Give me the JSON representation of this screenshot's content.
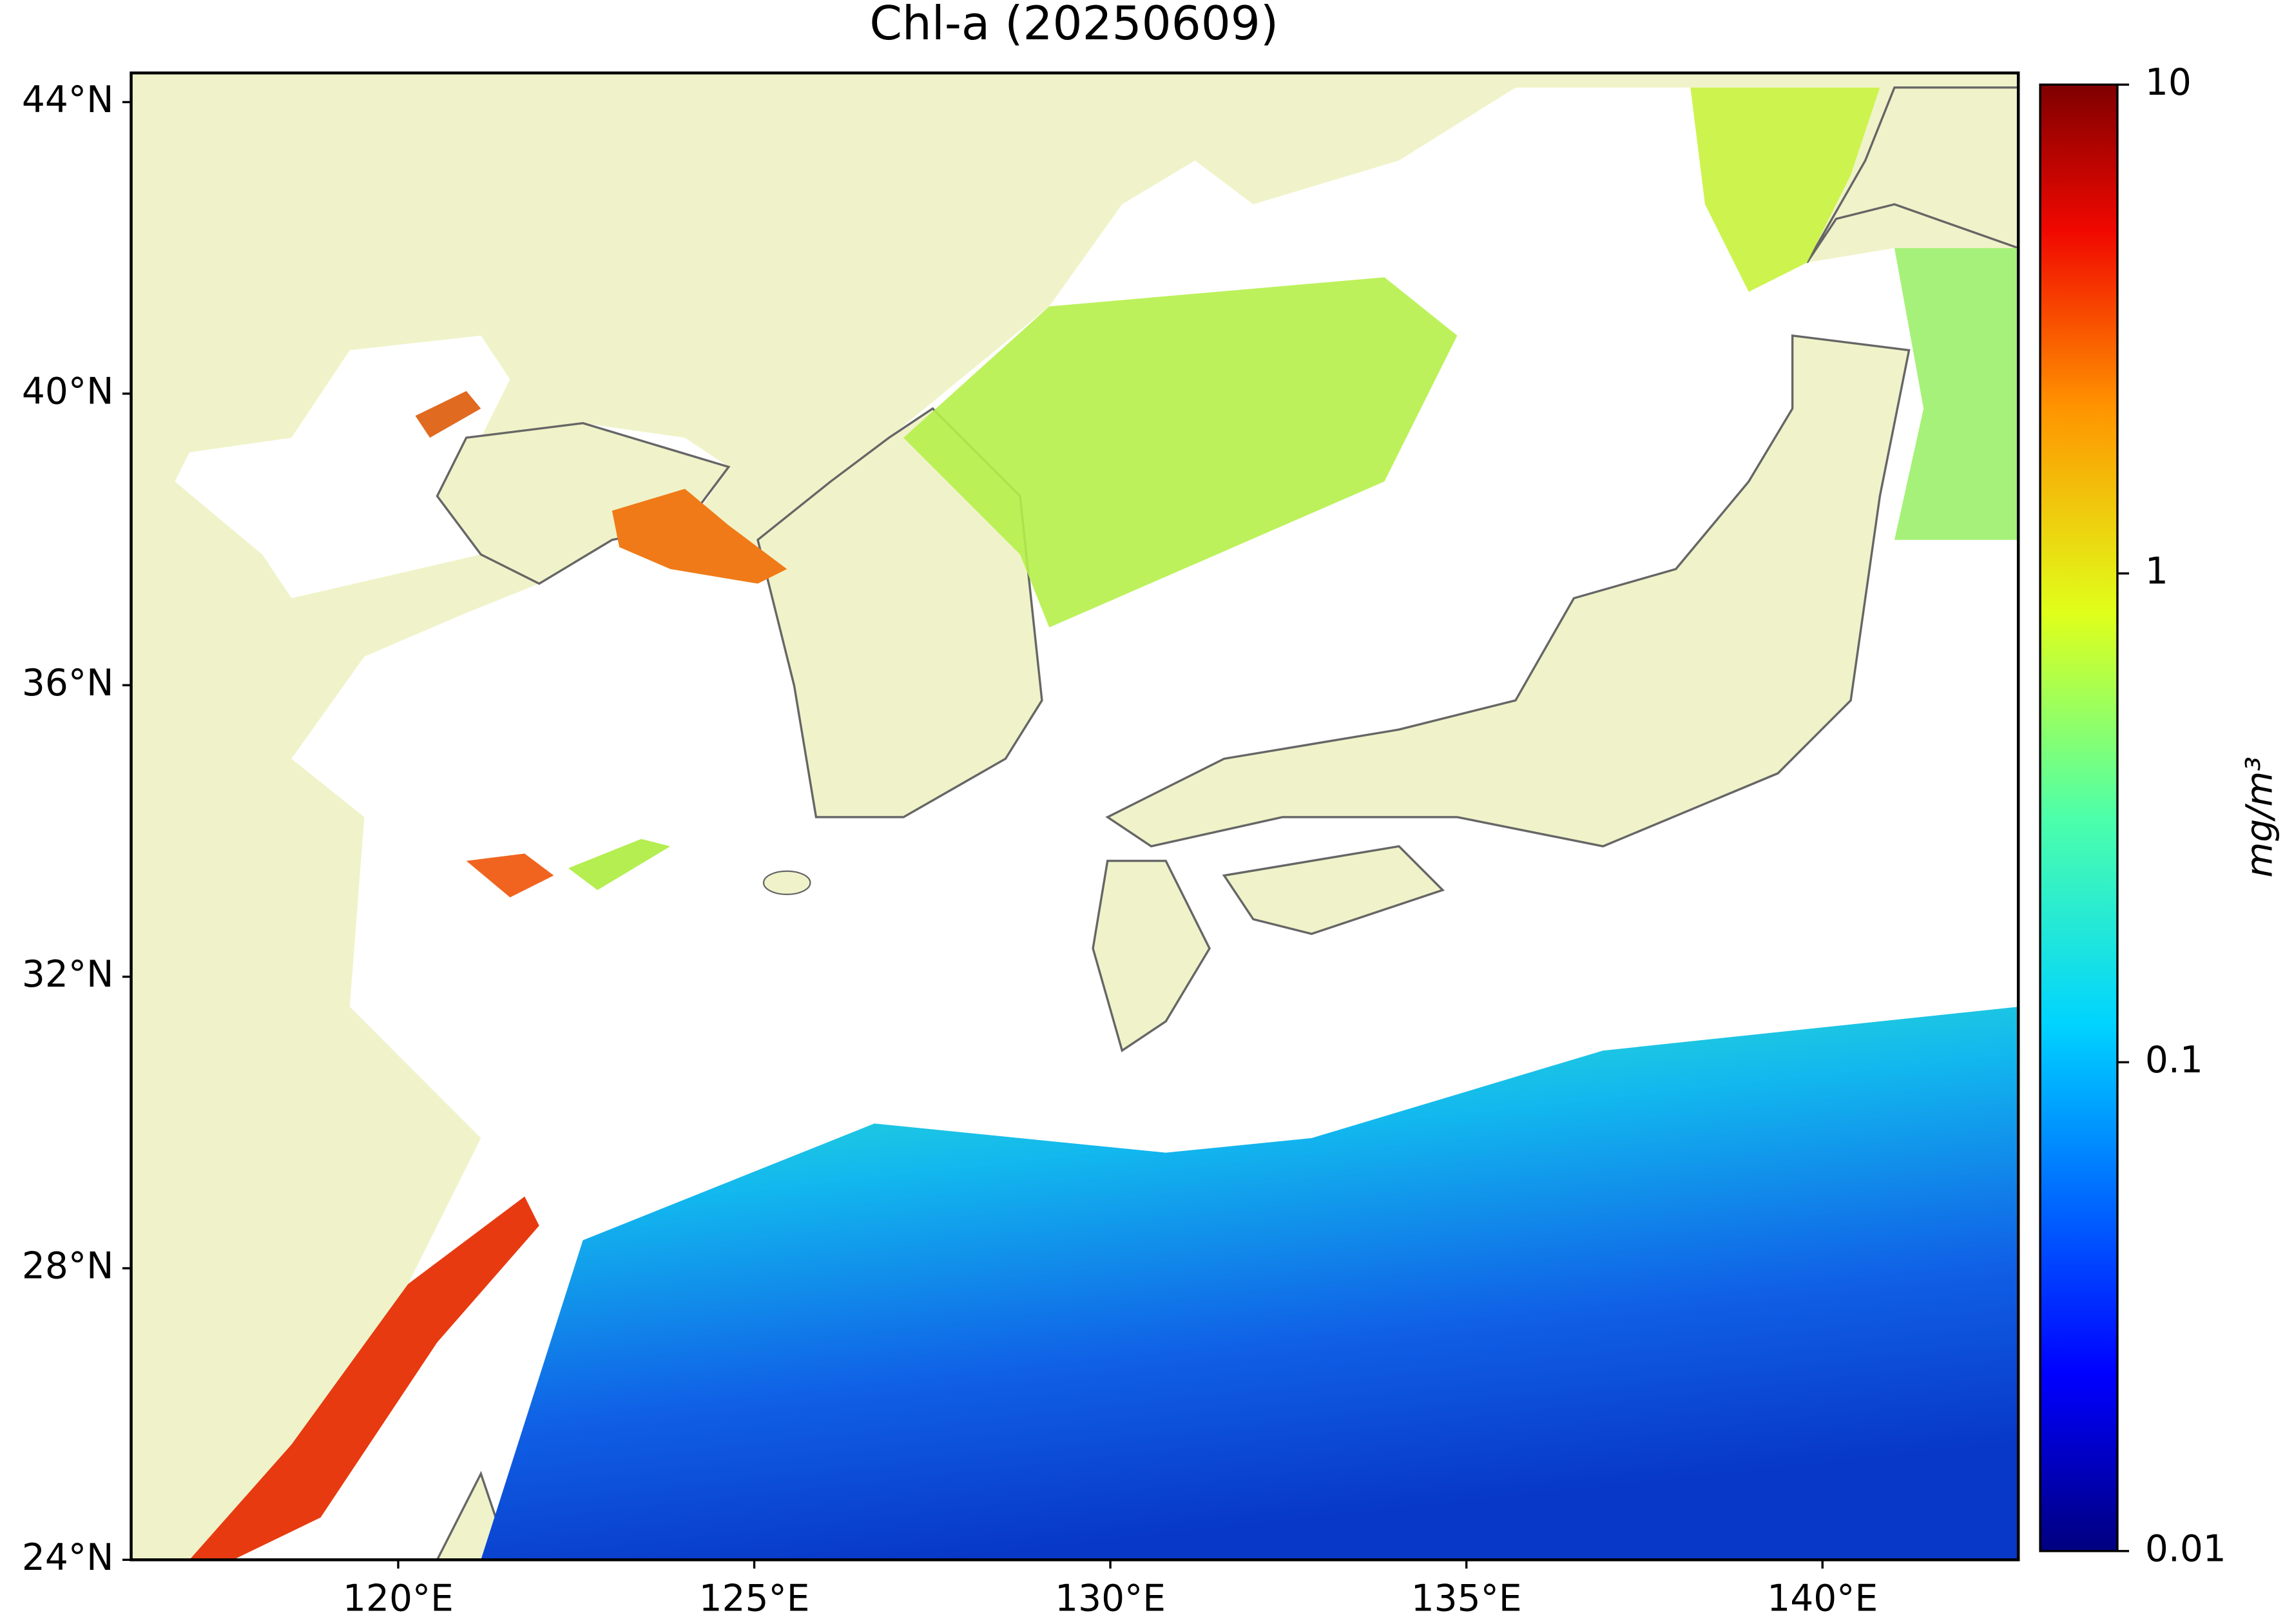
{
  "chart_data": {
    "type": "map",
    "title": "Chl-a (20250609)",
    "xlim": [
      116.25,
      142.75
    ],
    "xticks": [
      {
        "value": 120,
        "label": "120°E"
      },
      {
        "value": 125,
        "label": "125°E"
      },
      {
        "value": 130,
        "label": "130°E"
      },
      {
        "value": 135,
        "label": "135°E"
      },
      {
        "value": 140,
        "label": "140°E"
      }
    ],
    "ylim": [
      24,
      44.4
    ],
    "yticks": [
      {
        "value": 24,
        "label": "24°N"
      },
      {
        "value": 28,
        "label": "28°N"
      },
      {
        "value": 32,
        "label": "32°N"
      },
      {
        "value": 36,
        "label": "36°N"
      },
      {
        "value": 40,
        "label": "40°N"
      },
      {
        "value": 44,
        "label": "44°N"
      }
    ],
    "colorbar": {
      "label": "mg/m³",
      "lim": [
        0.01,
        10
      ],
      "ticks": [
        10,
        1,
        0.1,
        0.01
      ],
      "log": true
    }
  }
}
